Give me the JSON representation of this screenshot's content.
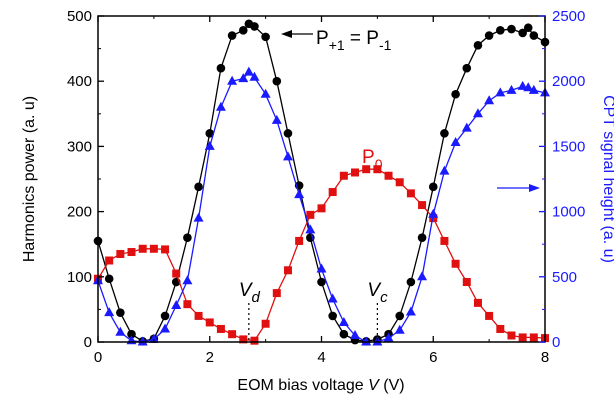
{
  "chart_data": {
    "type": "scatter",
    "xlabel_prefix": "EOM bias voltage ",
    "xlabel_var": "V",
    "xlabel_unit": " (V)",
    "ylabel_left": "Harmonics power (a. u)",
    "ylabel_right": "CPT signal height (a. u)",
    "xlim": [
      0,
      8
    ],
    "ylim_left": [
      0,
      500
    ],
    "ylim_right": [
      0,
      2500
    ],
    "xticks": [
      0,
      2,
      4,
      6,
      8
    ],
    "yticks_left": [
      0,
      100,
      200,
      300,
      400,
      500
    ],
    "yticks_right": [
      0,
      500,
      1000,
      1500,
      2000,
      2500
    ],
    "series": [
      {
        "label": "P+1 = P-1",
        "axis": "left",
        "marker": "circle",
        "color": "#000000",
        "x": [
          0,
          0.2,
          0.4,
          0.6,
          0.8,
          1.0,
          1.2,
          1.4,
          1.6,
          1.8,
          2.0,
          2.2,
          2.4,
          2.6,
          2.7,
          2.8,
          3.0,
          3.2,
          3.4,
          3.6,
          3.8,
          4.0,
          4.2,
          4.4,
          4.6,
          4.8,
          5.0,
          5.2,
          5.4,
          5.6,
          5.8,
          6.0,
          6.2,
          6.4,
          6.6,
          6.8,
          7.0,
          7.2,
          7.4,
          7.6,
          7.7,
          7.8,
          8.0
        ],
        "y": [
          155,
          97,
          45,
          12,
          1,
          5,
          40,
          92,
          160,
          238,
          320,
          420,
          470,
          478,
          488,
          484,
          468,
          400,
          320,
          240,
          160,
          92,
          40,
          12,
          3,
          1,
          4,
          12,
          40,
          92,
          160,
          238,
          320,
          380,
          420,
          455,
          470,
          478,
          480,
          474,
          482,
          470,
          460
        ]
      },
      {
        "label": "P0",
        "axis": "left",
        "marker": "square",
        "color": "#e01010",
        "x": [
          0,
          0.2,
          0.4,
          0.6,
          0.8,
          1.0,
          1.2,
          1.4,
          1.6,
          1.8,
          2.0,
          2.2,
          2.4,
          2.6,
          2.8,
          3.0,
          3.2,
          3.4,
          3.6,
          3.8,
          4.0,
          4.2,
          4.4,
          4.6,
          4.8,
          5.0,
          5.2,
          5.4,
          5.6,
          5.8,
          6.0,
          6.2,
          6.4,
          6.6,
          6.8,
          7.0,
          7.2,
          7.4,
          7.6,
          7.8,
          8.0
        ],
        "y": [
          97,
          125,
          135,
          138,
          143,
          143,
          142,
          105,
          58,
          40,
          30,
          20,
          12,
          4,
          2,
          28,
          75,
          110,
          155,
          195,
          205,
          230,
          255,
          260,
          265,
          265,
          255,
          245,
          228,
          210,
          190,
          155,
          120,
          92,
          60,
          40,
          20,
          10,
          7,
          7,
          6
        ]
      },
      {
        "label": "CPT",
        "axis": "right",
        "marker": "triangle",
        "color": "#1a1aff",
        "x": [
          0,
          0.2,
          0.4,
          0.6,
          0.8,
          1.0,
          1.2,
          1.4,
          1.6,
          1.8,
          2.0,
          2.2,
          2.4,
          2.6,
          2.7,
          2.8,
          3.0,
          3.2,
          3.4,
          3.6,
          3.8,
          4.0,
          4.2,
          4.4,
          4.6,
          4.8,
          5.0,
          5.2,
          5.4,
          5.6,
          5.8,
          6.0,
          6.2,
          6.4,
          6.6,
          6.8,
          7.0,
          7.2,
          7.4,
          7.6,
          7.7,
          7.8,
          8.0
        ],
        "y": [
          470,
          225,
          75,
          10,
          0,
          20,
          100,
          280,
          470,
          950,
          1500,
          1800,
          2000,
          2020,
          2070,
          2030,
          1900,
          1700,
          1420,
          1130,
          860,
          560,
          330,
          150,
          50,
          0,
          0,
          30,
          90,
          230,
          500,
          980,
          1310,
          1530,
          1640,
          1750,
          1850,
          1910,
          1930,
          1960,
          1950,
          1930,
          1910
        ]
      }
    ],
    "annotations": {
      "p_pm1_main": "P",
      "p_pm1_sub_a": "+1",
      "p_pm1_eq": " = P",
      "p_pm1_sub_b": "-1",
      "p0_main": "P",
      "p0_sub": "0",
      "vd_main": "V",
      "vd_sub": "d",
      "vc_main": "V",
      "vc_sub": "c",
      "vd_x": 2.7,
      "vc_x": 5.0
    }
  }
}
